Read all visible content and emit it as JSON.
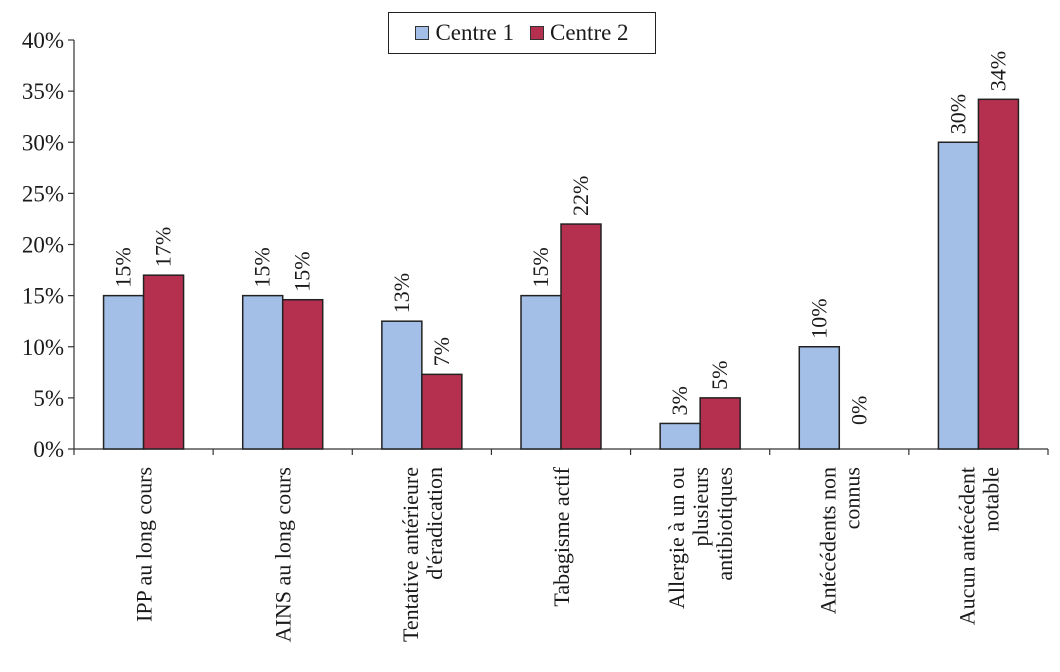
{
  "chart_data": {
    "type": "bar",
    "title": "",
    "xlabel": "",
    "ylabel": "",
    "ylim": [
      0,
      40
    ],
    "yticks": [
      "0%",
      "5%",
      "10%",
      "15%",
      "20%",
      "25%",
      "30%",
      "35%",
      "40%"
    ],
    "grid": false,
    "legend_position": "top-center",
    "categories": [
      [
        "IPP au long cours"
      ],
      [
        "AINS au long cours"
      ],
      [
        "Tentative antérieure",
        "d'éradication"
      ],
      [
        "Tabagisme actif"
      ],
      [
        "Allergie à un ou",
        "plusieurs",
        "antibiotiques"
      ],
      [
        "Antécédents non",
        "connus"
      ],
      [
        "Aucun antécédent",
        "notable"
      ]
    ],
    "series": [
      {
        "name": "Centre 1",
        "color": "#a3bfe8",
        "values": [
          15,
          15,
          12.5,
          15,
          2.5,
          10,
          30
        ],
        "labels": [
          "15%",
          "15%",
          "13%",
          "15%",
          "3%",
          "10%",
          "30%"
        ]
      },
      {
        "name": "Centre 2",
        "color": "#b5304f",
        "values": [
          17,
          14.6,
          7.3,
          22,
          5,
          0,
          34.2
        ],
        "labels": [
          "17%",
          "15%",
          "7%",
          "22%",
          "5%",
          "0%",
          "34%"
        ]
      }
    ]
  }
}
